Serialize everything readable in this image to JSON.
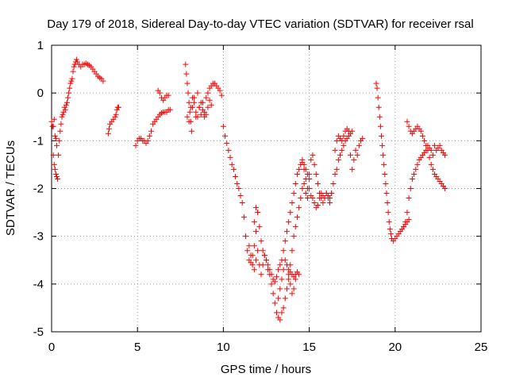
{
  "chart_data": {
    "type": "scatter",
    "title": "Day 179 of 2018, Sidereal Day-to-day VTEC variation (SDTVAR) for receiver rsal",
    "xlabel": "GPS time / hours",
    "ylabel": "SDTVAR / TECUs",
    "xlim": [
      0,
      25
    ],
    "ylim": [
      -5,
      1
    ],
    "xticks": [
      "0",
      "5",
      "10",
      "15",
      "20",
      "25"
    ],
    "yticks": [
      "1",
      "0",
      "-1",
      "-2",
      "-3",
      "-4",
      "-5"
    ],
    "grid": true,
    "legend": "none",
    "marker": "plus",
    "color": "#ff0000",
    "series": [
      {
        "x": [
          0.1,
          0.15,
          0.2,
          0.25,
          0.3,
          0.35,
          0.4,
          0.45,
          0.5,
          0.55,
          0.6,
          0.65,
          0.7,
          0.75,
          0.8,
          0.85,
          0.9,
          0.95,
          1.0,
          1.05,
          1.1,
          1.15,
          1.2,
          1.25,
          1.3,
          1.35,
          1.4,
          1.45,
          1.5,
          1.6,
          1.7,
          1.8,
          1.9,
          2.0,
          2.1,
          2.2,
          2.3,
          2.4,
          2.5,
          2.6,
          2.7,
          2.8,
          2.9,
          3.0
        ],
        "y": [
          -1.3,
          -1.5,
          -1.6,
          -1.7,
          -1.75,
          -1.8,
          -1.3,
          -1.0,
          -0.8,
          -0.65,
          -0.5,
          -0.45,
          -0.4,
          -0.3,
          -0.35,
          -0.25,
          -0.2,
          -0.1,
          0.0,
          0.1,
          0.2,
          0.25,
          0.3,
          0.45,
          0.55,
          0.6,
          0.65,
          0.7,
          0.65,
          0.6,
          0.55,
          0.6,
          0.6,
          0.62,
          0.6,
          0.58,
          0.55,
          0.5,
          0.45,
          0.4,
          0.35,
          0.32,
          0.3,
          0.25
        ]
      },
      {
        "x": [
          0.0,
          0.05,
          0.1,
          0.15,
          0.2,
          0.25,
          0.3
        ],
        "y": [
          -0.6,
          -0.7,
          -0.7,
          -0.55,
          -0.9,
          -0.95,
          -1.1
        ]
      },
      {
        "x": [
          3.3,
          3.35,
          3.4,
          3.5,
          3.6,
          3.7,
          3.75,
          3.8,
          3.85,
          3.9
        ],
        "y": [
          -0.85,
          -0.75,
          -0.65,
          -0.6,
          -0.55,
          -0.5,
          -0.45,
          -0.35,
          -0.3,
          -0.3
        ]
      },
      {
        "x": [
          4.9,
          5.0,
          5.1,
          5.2,
          5.3,
          5.4,
          5.5,
          5.6,
          5.7,
          5.8,
          5.9,
          6.0,
          6.1,
          6.2,
          6.3,
          6.4,
          6.5,
          6.6,
          6.7,
          6.8,
          6.9
        ],
        "y": [
          -1.1,
          -1.0,
          -0.95,
          -0.95,
          -1.0,
          -1.0,
          -1.05,
          -1.0,
          -0.9,
          -0.8,
          -0.65,
          -0.6,
          -0.55,
          -0.5,
          -0.45,
          -0.42,
          -0.4,
          -0.4,
          -0.4,
          -0.35,
          -0.35
        ]
      },
      {
        "x": [
          6.2,
          6.3,
          6.4,
          6.5,
          6.6,
          6.7,
          6.8
        ],
        "y": [
          0.05,
          0.0,
          -0.1,
          -0.15,
          -0.1,
          -0.05,
          -0.05
        ]
      },
      {
        "x": [
          7.8,
          7.85,
          7.9,
          7.95,
          8.0,
          8.05,
          8.1,
          8.15,
          8.2,
          8.3,
          8.4,
          8.5,
          8.6,
          8.7,
          8.8,
          8.9,
          9.0,
          9.1,
          9.2,
          9.3,
          9.4,
          9.5,
          9.6,
          9.7,
          9.8,
          9.9
        ],
        "y": [
          0.6,
          0.4,
          0.2,
          0.0,
          -0.2,
          -0.4,
          -0.6,
          -0.8,
          -0.3,
          -0.1,
          -0.5,
          0.0,
          -0.3,
          -0.45,
          -0.2,
          -0.4,
          -0.1,
          0.0,
          0.1,
          0.15,
          0.2,
          0.2,
          0.15,
          0.1,
          0.05,
          -0.05
        ]
      },
      {
        "x": [
          7.9,
          8.0,
          8.1,
          8.2,
          8.3,
          8.4,
          8.5,
          8.6,
          8.7,
          8.8,
          8.9,
          9.0,
          9.1,
          9.2,
          9.3
        ],
        "y": [
          -0.5,
          -0.6,
          -0.3,
          -0.1,
          -0.2,
          -0.4,
          -0.5,
          -0.3,
          -0.2,
          -0.35,
          -0.5,
          -0.45,
          -0.3,
          -0.15,
          -0.25
        ]
      },
      {
        "x": [
          10.0,
          10.1,
          10.2,
          10.3,
          10.4,
          10.5,
          10.6,
          10.7,
          10.8,
          10.9,
          11.0,
          11.1,
          11.2,
          11.3,
          11.4,
          11.5,
          11.6,
          11.7,
          11.8,
          11.9,
          12.0
        ],
        "y": [
          -0.7,
          -0.9,
          -1.05,
          -1.2,
          -1.35,
          -1.5,
          -1.6,
          -1.75,
          -1.9,
          -2.0,
          -2.15,
          -2.3,
          -2.6,
          -3.0,
          -3.3,
          -3.5,
          -3.55,
          -3.4,
          -3.2,
          -2.9,
          -2.5
        ]
      },
      {
        "x": [
          11.8,
          11.9,
          12.0,
          12.1,
          12.2,
          12.3,
          12.4,
          12.5,
          12.6,
          12.7,
          12.8,
          12.9,
          13.0,
          13.1,
          13.2,
          13.3,
          13.4,
          13.5,
          13.6,
          13.7,
          13.8,
          13.9,
          14.0,
          14.1,
          14.2,
          14.3,
          14.4,
          14.5,
          14.6,
          14.7,
          14.8,
          14.9,
          15.0
        ],
        "y": [
          -2.7,
          -2.4,
          -2.5,
          -2.8,
          -3.1,
          -3.3,
          -3.4,
          -3.5,
          -3.6,
          -3.7,
          -3.8,
          -3.9,
          -3.95,
          -3.85,
          -3.7,
          -3.6,
          -3.5,
          -3.3,
          -3.1,
          -2.9,
          -2.7,
          -2.5,
          -2.3,
          -2.1,
          -1.9,
          -1.7,
          -1.6,
          -1.5,
          -1.45,
          -1.5,
          -1.6,
          -1.7,
          -1.8
        ]
      },
      {
        "x": [
          11.5,
          11.6,
          11.7,
          11.8,
          11.9,
          12.0,
          12.1,
          12.2,
          12.3,
          12.4,
          12.5,
          12.6,
          12.7,
          12.8,
          12.9,
          13.0,
          13.1,
          13.2,
          13.3,
          13.4,
          13.5,
          13.6,
          13.7,
          13.8,
          13.9,
          14.0,
          14.1,
          14.2,
          14.3,
          14.4,
          14.5,
          14.6,
          14.7,
          14.8,
          14.9
        ],
        "y": [
          -3.2,
          -3.4,
          -3.6,
          -3.7,
          -3.5,
          -3.3,
          -3.6,
          -3.8,
          -3.6,
          -3.4,
          -3.5,
          -3.7,
          -3.8,
          -4.0,
          -4.2,
          -4.4,
          -4.6,
          -4.7,
          -4.75,
          -4.6,
          -4.5,
          -4.3,
          -4.1,
          -3.9,
          -3.6,
          -3.3,
          -3.0,
          -2.8,
          -2.6,
          -2.4,
          -2.2,
          -2.0,
          -1.9,
          -2.1,
          -2.2
        ]
      },
      {
        "x": [
          13.2,
          13.3,
          13.4,
          13.5,
          13.6,
          13.7,
          13.8,
          13.9,
          14.0,
          14.1,
          14.2
        ],
        "y": [
          -4.3,
          -4.1,
          -3.9,
          -3.7,
          -3.5,
          -3.6,
          -3.8,
          -4.0,
          -4.2,
          -4.1,
          -3.9
        ]
      },
      {
        "x": [
          13.8,
          13.9,
          14.0,
          14.1,
          14.2,
          14.3,
          14.4
        ],
        "y": [
          -3.7,
          -3.75,
          -3.8,
          -3.85,
          -3.8,
          -3.75,
          -3.8
        ]
      },
      {
        "x": [
          14.6,
          14.7,
          14.8,
          14.9,
          15.0,
          15.1,
          15.2,
          15.3,
          15.4,
          15.5,
          15.6,
          15.7,
          15.8,
          15.9,
          16.0,
          16.1,
          16.2,
          16.3,
          16.4,
          16.5,
          16.6,
          16.7,
          16.8,
          16.9,
          17.0,
          17.1,
          17.2,
          17.3,
          17.4,
          17.5
        ],
        "y": [
          -1.4,
          -1.6,
          -1.8,
          -2.0,
          -1.7,
          -1.4,
          -1.3,
          -1.5,
          -1.7,
          -1.9,
          -2.1,
          -2.2,
          -2.3,
          -2.2,
          -2.1,
          -2.2,
          -2.3,
          -2.1,
          -1.9,
          -1.7,
          -1.6,
          -1.4,
          -1.3,
          -1.2,
          -1.1,
          -1.0,
          -0.95,
          -0.9,
          -0.85,
          -0.8
        ]
      },
      {
        "x": [
          15.0,
          15.1,
          15.2,
          15.3,
          15.4,
          15.5,
          15.6,
          15.7,
          15.8,
          15.9,
          16.0,
          16.1,
          16.2,
          16.3
        ],
        "y": [
          -2.0,
          -2.15,
          -2.2,
          -2.3,
          -2.4,
          -2.35,
          -2.2,
          -2.1,
          -2.15,
          -2.2,
          -2.1,
          -2.15,
          -2.2,
          -2.1
        ]
      },
      {
        "x": [
          16.5,
          16.6,
          16.7,
          16.8,
          16.9,
          17.0,
          17.1,
          17.2,
          17.3,
          17.4,
          17.5,
          17.6,
          17.7,
          17.8,
          17.9,
          18.0,
          18.1
        ],
        "y": [
          -1.2,
          -1.0,
          -0.9,
          -0.95,
          -1.0,
          -0.9,
          -0.8,
          -0.75,
          -0.8,
          -1.3,
          -1.6,
          -1.4,
          -1.2,
          -1.3,
          -1.1,
          -1.0,
          -0.95
        ]
      },
      {
        "x": [
          18.9,
          18.95,
          19.0,
          19.05,
          19.1,
          19.15,
          19.2,
          19.25,
          19.3,
          19.35,
          19.4,
          19.45,
          19.5,
          19.55,
          19.6,
          19.65,
          19.7,
          19.75,
          19.8,
          19.9,
          20.0,
          20.1,
          20.2,
          20.3,
          20.4,
          20.5,
          20.6,
          20.7,
          20.8
        ],
        "y": [
          0.2,
          0.1,
          -0.1,
          -0.3,
          -0.5,
          -0.7,
          -0.9,
          -1.1,
          -1.3,
          -1.5,
          -1.7,
          -1.9,
          -2.1,
          -2.3,
          -2.5,
          -2.7,
          -2.85,
          -2.95,
          -3.05,
          -3.1,
          -3.05,
          -3.0,
          -2.95,
          -2.9,
          -2.85,
          -2.8,
          -2.75,
          -2.7,
          -2.65
        ]
      },
      {
        "x": [
          20.5,
          20.6,
          20.7,
          20.8,
          20.9,
          21.0,
          21.1,
          21.2,
          21.3,
          21.4,
          21.5,
          21.6,
          21.7,
          21.8,
          21.9,
          22.0,
          22.1,
          22.2,
          22.3,
          22.4,
          22.5,
          22.6,
          22.7,
          22.8,
          22.9
        ],
        "y": [
          -2.8,
          -2.7,
          -2.5,
          -2.2,
          -2.0,
          -1.8,
          -1.7,
          -1.6,
          -1.5,
          -1.4,
          -1.35,
          -1.3,
          -1.25,
          -1.2,
          -1.1,
          -1.15,
          -1.2,
          -1.3,
          -1.1,
          -1.2,
          -1.15,
          -1.1,
          -1.2,
          -1.25,
          -1.3
        ]
      },
      {
        "x": [
          20.7,
          20.8,
          20.9,
          21.0,
          21.1,
          21.2,
          21.3,
          21.4,
          21.5,
          21.6,
          21.7,
          21.8,
          21.9,
          22.0,
          22.1,
          22.2,
          22.3,
          22.4,
          22.5,
          22.6,
          22.7,
          22.8,
          22.9
        ],
        "y": [
          -0.6,
          -0.7,
          -0.8,
          -0.85,
          -0.8,
          -0.75,
          -0.7,
          -0.75,
          -0.8,
          -0.9,
          -1.0,
          -1.1,
          -1.2,
          -1.35,
          -1.5,
          -1.6,
          -1.7,
          -1.75,
          -1.8,
          -1.85,
          -1.9,
          -1.95,
          -2.0
        ]
      }
    ]
  }
}
